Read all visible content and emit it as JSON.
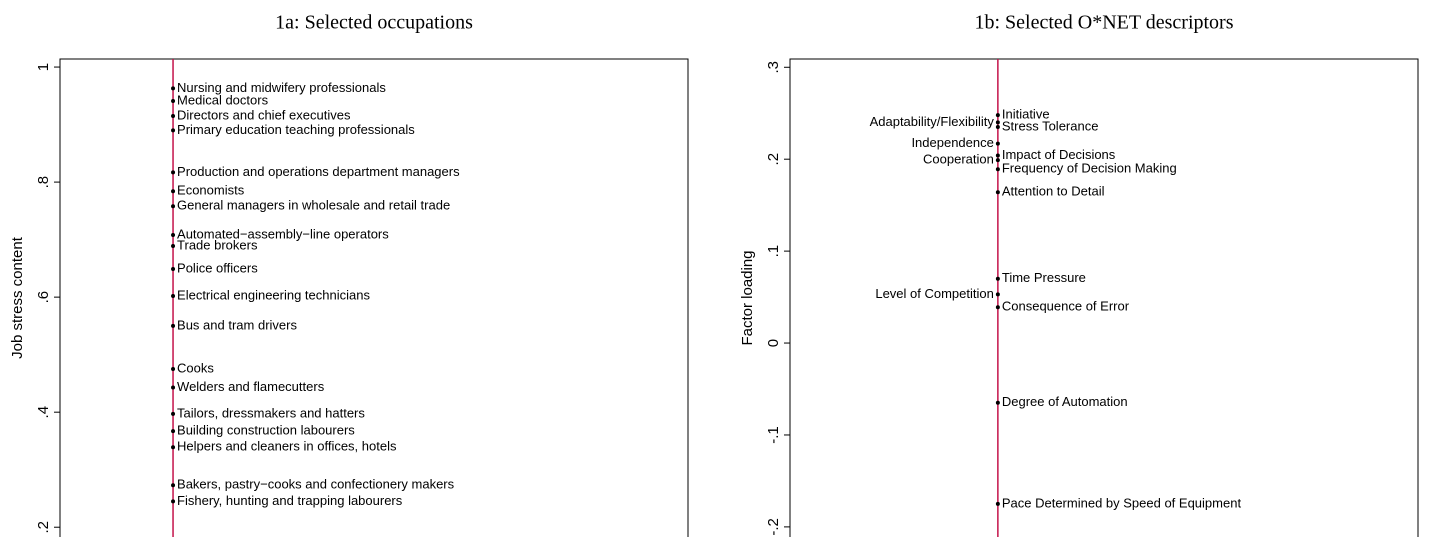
{
  "chart_data": [
    {
      "type": "dotplot",
      "title": "1a: Selected occupations",
      "ylabel": "Job stress content",
      "categories": [
        "Nursing and midwifery professionals",
        "Medical doctors",
        "Directors and chief executives",
        "Primary education teaching professionals",
        "Production and operations department managers",
        "Economists",
        "General managers in wholesale and retail trade",
        "Automated−assembly−line operators",
        "Trade brokers",
        "Police officers",
        "Electrical engineering technicians",
        "Bus and tram drivers",
        "Cooks",
        "Welders and flamecutters",
        "Tailors, dressmakers and hatters",
        "Building construction labourers",
        "Helpers and cleaners in offices, hotels",
        "Bakers, pastry−cooks and confectionery makers",
        "Fishery, hunting and trapping labourers"
      ],
      "values": [
        0.963,
        0.941,
        0.915,
        0.89,
        0.817,
        0.784,
        0.758,
        0.708,
        0.689,
        0.649,
        0.602,
        0.55,
        0.475,
        0.443,
        0.397,
        0.367,
        0.339,
        0.273,
        0.245
      ],
      "label_side": [
        "right",
        "right",
        "right",
        "right",
        "right",
        "right",
        "right",
        "right",
        "right",
        "right",
        "right",
        "right",
        "right",
        "right",
        "right",
        "right",
        "right",
        "right",
        "right"
      ],
      "ylim": [
        0.183,
        1.014
      ],
      "yticks": [
        {
          "value": 0.2,
          "label": ".2"
        },
        {
          "value": 0.4,
          "label": ".4"
        },
        {
          "value": 0.6,
          "label": ".6"
        },
        {
          "value": 0.8,
          "label": ".8"
        },
        1
      ],
      "line_color": "#c4124a",
      "color": "#000000"
    },
    {
      "type": "dotplot",
      "title": "1b: Selected O*NET descriptors",
      "ylabel": "Factor loading",
      "categories": [
        "Initiative",
        "Adaptability/Flexibility",
        "Stress Tolerance",
        "Independence",
        "Impact of Decisions",
        "Cooperation",
        "Frequency of Decision Making",
        "Attention to Detail",
        "Time Pressure",
        "Level of Competition",
        "Consequence of Error",
        "Degree of Automation",
        "Pace Determined by Speed of Equipment"
      ],
      "values": [
        0.248,
        0.24,
        0.235,
        0.217,
        0.204,
        0.199,
        0.189,
        0.164,
        0.07,
        0.053,
        0.039,
        -0.065,
        -0.175
      ],
      "label_side": [
        "right",
        "left",
        "right",
        "left",
        "right",
        "left",
        "right",
        "right",
        "right",
        "left",
        "right",
        "right",
        "right"
      ],
      "ylim": [
        -0.211,
        0.309
      ],
      "yticks": [
        {
          "value": -0.2,
          "label": "-.2"
        },
        {
          "value": -0.1,
          "label": "-.1"
        },
        0,
        {
          "value": 0.1,
          "label": ".1"
        },
        {
          "value": 0.2,
          "label": ".2"
        },
        {
          "value": 0.3,
          "label": ".3"
        }
      ],
      "line_color": "#c4124a",
      "color": "#000000"
    }
  ]
}
